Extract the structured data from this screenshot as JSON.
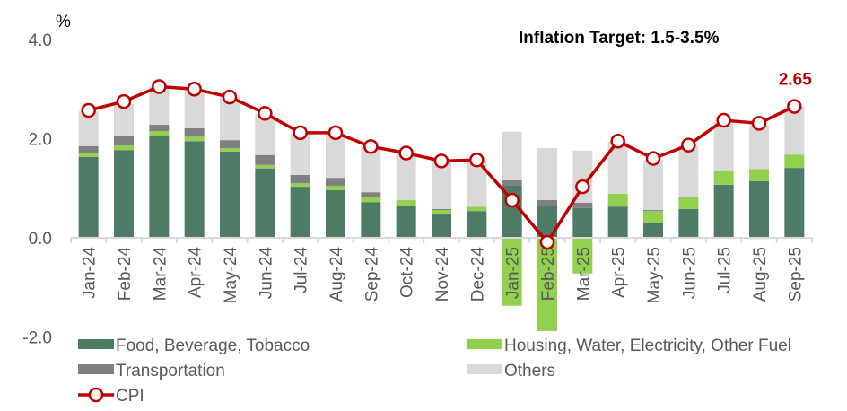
{
  "chart_data": {
    "type": "bar",
    "subtype": "stacked-bar-with-line",
    "title": "",
    "annotation": "Inflation Target: 1.5-3.5%",
    "ylabel": "%",
    "xlabel": "",
    "ylim": [
      -2.0,
      4.0
    ],
    "yticks": [
      -2.0,
      0.0,
      2.0,
      4.0
    ],
    "ytick_labels": [
      "-2.0",
      "0.0",
      "2.0",
      "4.0"
    ],
    "grid": false,
    "legend_position": "bottom",
    "categories": [
      "Jan-24",
      "Feb-24",
      "Mar-24",
      "Apr-24",
      "May-24",
      "Jun-24",
      "Jul-24",
      "Aug-24",
      "Sep-24",
      "Oct-24",
      "Nov-24",
      "Dec-24",
      "Jan-25",
      "Feb-25",
      "Mar-25",
      "Apr-25",
      "May-25",
      "Jun-25",
      "Jul-25",
      "Aug-25",
      "Sep-25"
    ],
    "series": [
      {
        "name": "Food, Beverage, Tobacco",
        "kind": "bar",
        "color": "#4E7B65",
        "values": [
          1.63,
          1.77,
          2.06,
          1.95,
          1.74,
          1.4,
          1.03,
          0.96,
          0.72,
          0.65,
          0.47,
          0.54,
          1.05,
          0.65,
          0.6,
          0.63,
          0.29,
          0.58,
          1.07,
          1.14,
          1.41
        ]
      },
      {
        "name": "Housing, Water, Electricity, Other Fuel",
        "kind": "bar",
        "color": "#92D050",
        "values": [
          0.09,
          0.09,
          0.09,
          0.09,
          0.07,
          0.07,
          0.07,
          0.09,
          0.09,
          0.11,
          0.09,
          0.09,
          -1.37,
          -1.88,
          -0.72,
          0.26,
          0.25,
          0.23,
          0.27,
          0.25,
          0.27
        ]
      },
      {
        "name": "Transportation",
        "kind": "bar",
        "color": "#808080",
        "values": [
          0.13,
          0.19,
          0.13,
          0.17,
          0.16,
          0.2,
          0.17,
          0.16,
          0.11,
          0.0,
          0.02,
          -0.02,
          0.11,
          0.11,
          0.11,
          0.0,
          0.02,
          0.02,
          0.0,
          -0.02,
          0.0
        ]
      },
      {
        "name": "Others",
        "kind": "bar",
        "color": "#D9D9D9",
        "values": [
          0.7,
          0.65,
          0.77,
          0.79,
          0.88,
          0.83,
          0.83,
          0.89,
          0.92,
          0.96,
          0.97,
          0.94,
          0.98,
          1.05,
          1.05,
          1.05,
          1.01,
          1.03,
          0.99,
          0.89,
          0.96
        ]
      },
      {
        "name": "CPI",
        "kind": "line",
        "color": "#C00000",
        "values": [
          2.57,
          2.75,
          3.05,
          3.0,
          2.84,
          2.51,
          2.12,
          2.12,
          1.84,
          1.71,
          1.55,
          1.57,
          0.76,
          -0.09,
          1.03,
          1.95,
          1.6,
          1.87,
          2.37,
          2.31,
          2.65
        ]
      }
    ],
    "last_point_label": "2.65"
  },
  "legend": {
    "items": [
      {
        "name": "Food, Beverage, Tobacco",
        "kind": "bar",
        "color": "#4E7B65"
      },
      {
        "name": "Housing, Water, Electricity, Other Fuel",
        "kind": "bar",
        "color": "#92D050"
      },
      {
        "name": "Transportation",
        "kind": "bar",
        "color": "#808080"
      },
      {
        "name": "Others",
        "kind": "bar",
        "color": "#D9D9D9"
      },
      {
        "name": "CPI",
        "kind": "line",
        "color": "#C00000"
      }
    ]
  },
  "colors": {
    "axis": "#D9D9D9",
    "cpi": "#C00000"
  }
}
